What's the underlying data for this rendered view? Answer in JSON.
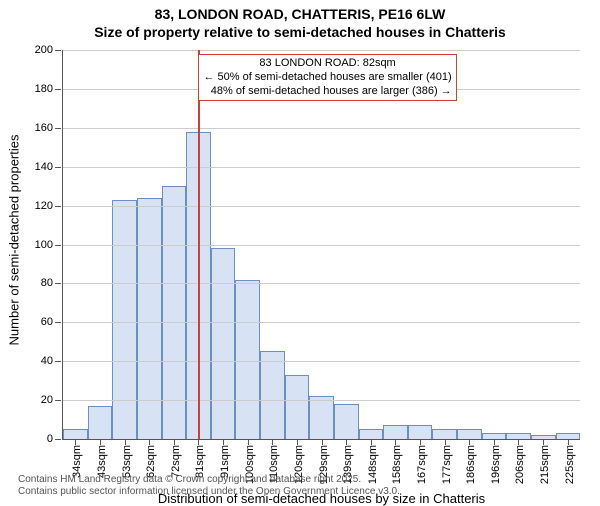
{
  "title_line1": "83, LONDON ROAD, CHATTERIS, PE16 6LW",
  "title_line2": "Size of property relative to semi-detached houses in Chatteris",
  "title_fontsize": 14,
  "ylabel": "Number of semi-detached properties",
  "xlabel": "Distribution of semi-detached houses by size in Chatteris",
  "label_fontsize": 13,
  "chart": {
    "type": "bar",
    "ylim": [
      0,
      200
    ],
    "ytick_step": 20,
    "grid_color": "#cccccc",
    "axis_color": "#555555",
    "background_color": "#ffffff",
    "bar_fill": "#d7e3f4",
    "bar_stroke": "#6b8fc2",
    "categories": [
      "34sqm",
      "43sqm",
      "53sqm",
      "62sqm",
      "72sqm",
      "81sqm",
      "91sqm",
      "100sqm",
      "110sqm",
      "120sqm",
      "129sqm",
      "139sqm",
      "148sqm",
      "158sqm",
      "167sqm",
      "177sqm",
      "186sqm",
      "196sqm",
      "206sqm",
      "215sqm",
      "225sqm"
    ],
    "values": [
      5,
      17,
      123,
      124,
      130,
      158,
      98,
      82,
      45,
      33,
      22,
      18,
      5,
      7,
      7,
      5,
      5,
      3,
      3,
      2,
      3
    ],
    "tick_fontsize": 11
  },
  "marker": {
    "color": "#d43b3b",
    "fraction": 0.262,
    "label_title": "83 LONDON ROAD: 82sqm",
    "label_line1": "← 50% of semi-detached houses are smaller (401)",
    "label_line2": "48% of semi-detached houses are larger (386) →",
    "box_border": "#d43b3b"
  },
  "footer_line1": "Contains HM Land Registry data © Crown copyright and database right 2025.",
  "footer_line2": "Contains public sector information licensed under the Open Government Licence v3.0."
}
